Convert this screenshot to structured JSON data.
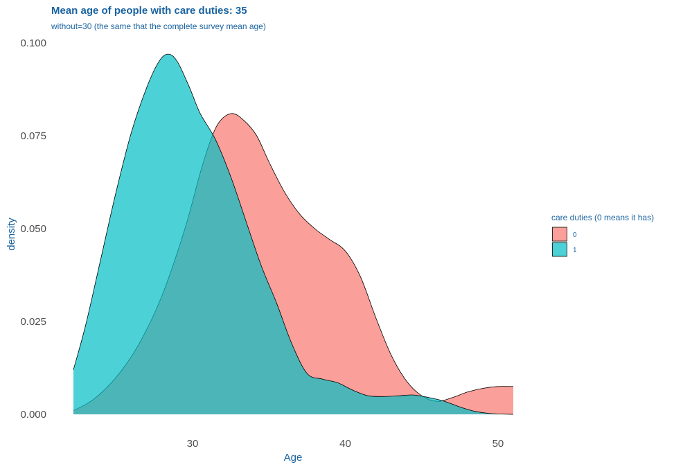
{
  "chart_data": {
    "type": "area",
    "title": "Mean age of people with care duties: 35",
    "subtitle": "without=30 (the same that the complete survey mean age)",
    "xlabel": "Age",
    "ylabel": "density",
    "xlim": [
      22.2,
      51.0
    ],
    "ylim": [
      0,
      0.1
    ],
    "x_ticks": [
      30,
      40,
      50
    ],
    "y_ticks": [
      0.0,
      0.025,
      0.05,
      0.075,
      0.1
    ],
    "x_tick_labels": [
      "30",
      "40",
      "50"
    ],
    "y_tick_labels": [
      "0.000",
      "0.025",
      "0.050",
      "0.075",
      "0.100"
    ],
    "grid": false,
    "legend": {
      "title": "care duties (0 means it has)",
      "position": "right"
    },
    "series": [
      {
        "name": "0",
        "color": "#f8766d",
        "x": [
          22.2,
          23.5,
          25.0,
          26.5,
          28.0,
          29.5,
          30.5,
          31.2,
          31.8,
          32.6,
          33.4,
          34.2,
          35.0,
          36.0,
          37.0,
          38.0,
          39.0,
          40.0,
          41.0,
          42.0,
          43.0,
          44.0,
          45.0,
          46.0,
          47.0,
          48.0,
          49.0,
          50.0,
          51.0
        ],
        "y": [
          0.001,
          0.004,
          0.01,
          0.019,
          0.032,
          0.05,
          0.065,
          0.074,
          0.079,
          0.081,
          0.079,
          0.075,
          0.068,
          0.06,
          0.054,
          0.05,
          0.047,
          0.044,
          0.037,
          0.026,
          0.016,
          0.009,
          0.005,
          0.0035,
          0.0045,
          0.006,
          0.007,
          0.0075,
          0.0075
        ]
      },
      {
        "name": "1",
        "color": "#00bfc4",
        "x": [
          22.2,
          23.0,
          24.0,
          25.0,
          26.0,
          27.0,
          27.8,
          28.4,
          29.0,
          29.8,
          30.5,
          31.5,
          32.5,
          33.5,
          34.5,
          35.5,
          36.5,
          37.5,
          38.5,
          39.5,
          40.5,
          41.5,
          42.5,
          43.5,
          44.5,
          45.5,
          46.5,
          47.5,
          48.5,
          49.5,
          51.0
        ],
        "y": [
          0.012,
          0.024,
          0.042,
          0.06,
          0.076,
          0.088,
          0.095,
          0.097,
          0.095,
          0.088,
          0.081,
          0.074,
          0.064,
          0.052,
          0.04,
          0.03,
          0.019,
          0.011,
          0.0095,
          0.0085,
          0.0065,
          0.005,
          0.0048,
          0.005,
          0.0052,
          0.0045,
          0.0035,
          0.002,
          0.0008,
          0.0002,
          0.0
        ]
      }
    ]
  }
}
